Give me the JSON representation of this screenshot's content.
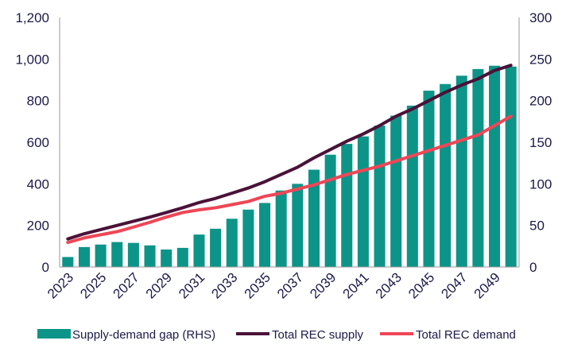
{
  "chart_data": {
    "type": "bar",
    "colors": {
      "gap_bar": "#0d9488",
      "supply_line": "#4a1238",
      "demand_line": "#ef4656",
      "axis": "#1a1a4a"
    },
    "categories": [
      2023,
      2024,
      2025,
      2026,
      2027,
      2028,
      2029,
      2030,
      2031,
      2032,
      2033,
      2034,
      2035,
      2036,
      2037,
      2038,
      2039,
      2040,
      2041,
      2042,
      2043,
      2044,
      2045,
      2046,
      2047,
      2048,
      2049,
      2050
    ],
    "x_tick_labels": [
      "2023",
      "2025",
      "2027",
      "2029",
      "2031",
      "2033",
      "2035",
      "2037",
      "2039",
      "2041",
      "2043",
      "2045",
      "2047",
      "2049"
    ],
    "y_left": {
      "range": [
        0,
        1200
      ],
      "ticks": [
        "0",
        "200",
        "400",
        "600",
        "800",
        "1,000",
        "1,200"
      ],
      "tick_values": [
        0,
        200,
        400,
        600,
        800,
        1000,
        1200
      ]
    },
    "y_right": {
      "range": [
        0,
        300
      ],
      "ticks": [
        "0",
        "50",
        "100",
        "150",
        "200",
        "250",
        "300"
      ],
      "tick_values": [
        0,
        50,
        100,
        150,
        200,
        250,
        300
      ]
    },
    "series": [
      {
        "name": "Supply-demand gap (RHS)",
        "kind": "bar",
        "axis": "right",
        "values": [
          12,
          24,
          27,
          30,
          29,
          26,
          21,
          23,
          39,
          46,
          58,
          69,
          77,
          92,
          100,
          117,
          135,
          148,
          157,
          170,
          182,
          194,
          212,
          220,
          230,
          238,
          242,
          241
        ]
      },
      {
        "name": "Total REC supply",
        "kind": "line",
        "axis": "left",
        "values": [
          135,
          160,
          180,
          200,
          220,
          240,
          262,
          285,
          310,
          330,
          355,
          380,
          410,
          445,
          480,
          525,
          565,
          605,
          640,
          680,
          725,
          760,
          800,
          840,
          875,
          905,
          945,
          970
        ]
      },
      {
        "name": "Total REC demand",
        "kind": "line",
        "axis": "left",
        "values": [
          118,
          140,
          155,
          170,
          192,
          215,
          240,
          262,
          275,
          285,
          300,
          315,
          340,
          355,
          375,
          395,
          420,
          445,
          465,
          485,
          510,
          535,
          560,
          585,
          610,
          635,
          680,
          725
        ]
      }
    ],
    "legend": {
      "position": "bottom",
      "items": [
        {
          "label": "Supply-demand gap (RHS)",
          "marker": "box"
        },
        {
          "label": "Total REC supply",
          "marker": "line"
        },
        {
          "label": "Total REC demand",
          "marker": "line"
        }
      ]
    }
  }
}
